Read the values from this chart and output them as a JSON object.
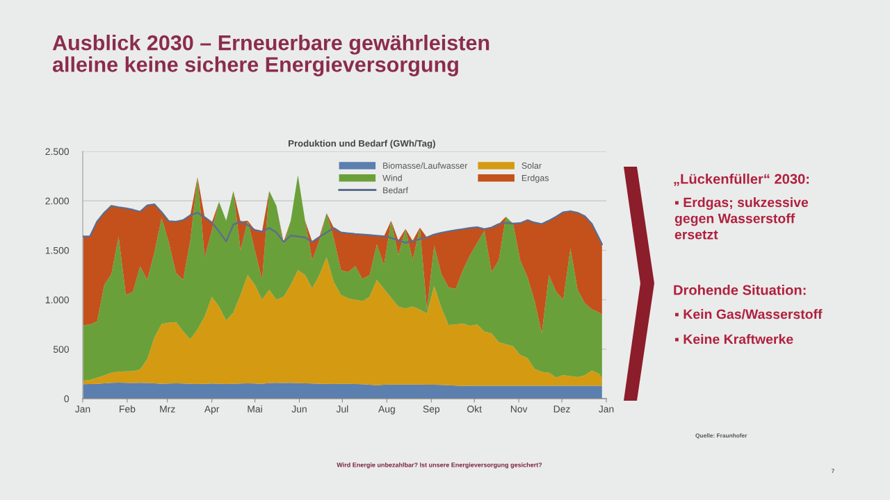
{
  "chart_data": {
    "type": "area",
    "stacked": true,
    "title": "Ausblick 2030 – Erneuerbare gewährleisten\nalleine keine sichere Energieversorgung",
    "subtitle": "Produktion und Bedarf (GWh/Tag)",
    "x": [
      "2030-01-01",
      "2030-01-06",
      "2030-01-11",
      "2030-01-16",
      "2030-01-21",
      "2030-01-26",
      "2030-01-31",
      "2030-02-05",
      "2030-02-10",
      "2030-02-15",
      "2030-02-20",
      "2030-02-25",
      "2030-03-02",
      "2030-03-07",
      "2030-03-12",
      "2030-03-17",
      "2030-03-22",
      "2030-03-27",
      "2030-04-01",
      "2030-04-06",
      "2030-04-11",
      "2030-04-16",
      "2030-04-21",
      "2030-04-26",
      "2030-05-01",
      "2030-05-06",
      "2030-05-11",
      "2030-05-16",
      "2030-05-21",
      "2030-05-26",
      "2030-05-31",
      "2030-06-05",
      "2030-06-10",
      "2030-06-15",
      "2030-06-20",
      "2030-06-25",
      "2030-06-30",
      "2030-07-05",
      "2030-07-10",
      "2030-07-15",
      "2030-07-20",
      "2030-07-25",
      "2030-07-30",
      "2030-08-04",
      "2030-08-09",
      "2030-08-14",
      "2030-08-19",
      "2030-08-24",
      "2030-08-29",
      "2030-09-03",
      "2030-09-08",
      "2030-09-13",
      "2030-09-18",
      "2030-09-23",
      "2030-09-28",
      "2030-10-03",
      "2030-10-08",
      "2030-10-13",
      "2030-10-18",
      "2030-10-23",
      "2030-10-28",
      "2030-11-02",
      "2030-11-07",
      "2030-11-12",
      "2030-11-17",
      "2030-11-22",
      "2030-11-27",
      "2030-12-02",
      "2030-12-07",
      "2030-12-12",
      "2030-12-17",
      "2030-12-22",
      "2030-12-27",
      "2030-12-29"
    ],
    "xlim": [
      "2030-01-01",
      "2031-01-01"
    ],
    "xticks": [
      {
        "value": "2030-01-01",
        "label": "Jan"
      },
      {
        "value": "2030-02-01",
        "label": "Feb"
      },
      {
        "value": "2030-03-01",
        "label": "Mrz"
      },
      {
        "value": "2030-04-01",
        "label": "Apr"
      },
      {
        "value": "2030-05-01",
        "label": "Mai"
      },
      {
        "value": "2030-06-01",
        "label": "Jun"
      },
      {
        "value": "2030-07-01",
        "label": "Jul"
      },
      {
        "value": "2030-08-01",
        "label": "Aug"
      },
      {
        "value": "2030-09-01",
        "label": "Sep"
      },
      {
        "value": "2030-10-01",
        "label": "Okt"
      },
      {
        "value": "2030-11-01",
        "label": "Nov"
      },
      {
        "value": "2030-12-01",
        "label": "Dez"
      },
      {
        "value": "2031-01-01",
        "label": "Jan"
      }
    ],
    "ylim": [
      0,
      2500
    ],
    "yticks": [
      0,
      500,
      {
        "value": 1000,
        "label": "1.000"
      },
      {
        "value": 1500,
        "label": "1.500"
      },
      {
        "value": 2000,
        "label": "2.000"
      },
      {
        "value": 2500,
        "label": "2.500"
      }
    ],
    "grid": "y",
    "legend": "top",
    "series": [
      {
        "name": "Biomasse/Laufwasser",
        "color": "#5b7fae",
        "values": [
          145,
          148,
          150,
          155,
          160,
          162,
          160,
          158,
          160,
          158,
          155,
          150,
          152,
          155,
          153,
          150,
          148,
          150,
          152,
          150,
          148,
          150,
          152,
          155,
          153,
          150,
          158,
          160,
          158,
          160,
          157,
          155,
          152,
          150,
          150,
          148,
          150,
          150,
          148,
          145,
          140,
          135,
          140,
          142,
          143,
          143,
          142,
          142,
          140,
          140,
          138,
          135,
          132,
          128,
          130,
          130,
          130,
          130,
          130,
          130,
          130,
          130,
          130,
          130,
          130,
          130,
          130,
          130,
          130,
          130,
          130,
          130,
          130,
          130
        ]
      },
      {
        "name": "Solar",
        "color": "#d49b12",
        "values": [
          35,
          42,
          60,
          80,
          102,
          110,
          115,
          119,
          135,
          242,
          465,
          605,
          616,
          620,
          527,
          450,
          552,
          680,
          878,
          780,
          642,
          720,
          898,
          1095,
          997,
          850,
          942,
          840,
          872,
          990,
          1143,
          1095,
          963,
          1100,
          1280,
          1032,
          900,
          865,
          852,
          840,
          890,
          1065,
          970,
          878,
          787,
          768,
          788,
          758,
          720,
          1000,
          782,
          609,
          618,
          632,
          605,
          620,
          547,
          530,
          440,
          420,
          400,
          310,
          280,
          170,
          140,
          132,
          85,
          108,
          97,
          88,
          105,
          155,
          120,
          77
        ]
      },
      {
        "name": "Wind",
        "color": "#6aa03a",
        "values": [
          560,
          560,
          570,
          915,
          998,
          1368,
          775,
          803,
          1045,
          800,
          860,
          1072,
          812,
          495,
          520,
          1000,
          1540,
          600,
          670,
          1060,
          1010,
          1230,
          450,
          550,
          350,
          200,
          1000,
          950,
          530,
          650,
          960,
          550,
          285,
          350,
          446,
          440,
          250,
          265,
          340,
          225,
          220,
          360,
          240,
          780,
          520,
          806,
          470,
          830,
          40,
          410,
          340,
          381,
          360,
          540,
          715,
          825,
          1023,
          620,
          830,
          1290,
          1240,
          960,
          820,
          690,
          390,
          988,
          865,
          762,
          1293,
          882,
          730,
          620,
          620,
          641
        ]
      },
      {
        "name": "Erdgas",
        "color": "#c4501c",
        "values": [
          900,
          890,
          1010,
          730,
          690,
          295,
          875,
          830,
          550,
          755,
          485,
          58,
          215,
          520,
          605,
          255,
          0,
          405,
          80,
          0,
          0,
          0,
          290,
          0,
          205,
          490,
          0,
          0,
          25,
          0,
          0,
          0,
          185,
          35,
          0,
          105,
          380,
          392,
          325,
          450,
          404,
          88,
          292,
          0,
          150,
          0,
          195,
          0,
          730,
          110,
          418,
          567,
          593,
          414,
          276,
          158,
          15,
          450,
          365,
          0,
          0,
          375,
          575,
          790,
          1105,
          550,
          760,
          885,
          375,
          780,
          880,
          860,
          750,
          712
        ]
      },
      {
        "name": "Bedarf",
        "type": "line",
        "color": "#5d6d8e",
        "values": [
          1640,
          1640,
          1790,
          1880,
          1950,
          1935,
          1925,
          1910,
          1890,
          1955,
          1965,
          1885,
          1795,
          1790,
          1805,
          1855,
          1880,
          1835,
          1780,
          1690,
          1590,
          1760,
          1790,
          1755,
          1705,
          1690,
          1725,
          1680,
          1585,
          1650,
          1640,
          1630,
          1585,
          1635,
          1680,
          1725,
          1680,
          1672,
          1665,
          1660,
          1654,
          1648,
          1642,
          1625,
          1600,
          1575,
          1595,
          1612,
          1630,
          1660,
          1678,
          1692,
          1703,
          1714,
          1726,
          1733,
          1715,
          1730,
          1765,
          1778,
          1770,
          1775,
          1805,
          1780,
          1765,
          1800,
          1840,
          1885,
          1895,
          1880,
          1845,
          1765,
          1620,
          1560
        ]
      }
    ],
    "annotations": [
      "„Lückenfüller“ 2030:",
      "▪ Erdgas; sukzessive\ngegen Wasserstoff\nersetzt",
      "Drohende Situation:",
      "▪ Kein Gas/Wasserstoff",
      "▪ Keine Kraftwerke",
      "Quelle: Fraunhofer",
      "Wird Energie unbezahlbar? Ist unsere Energieversorgung gesichert?",
      "7"
    ]
  }
}
